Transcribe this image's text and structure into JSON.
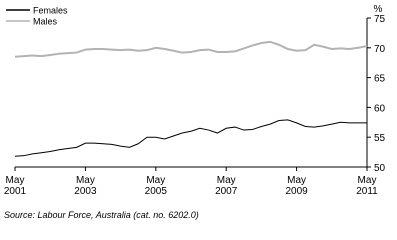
{
  "chart_data": {
    "type": "line",
    "y_label": "%",
    "source": "Source: Labour Force, Australia (cat. no. 6202.0)",
    "legend_position": "upper left",
    "x": [
      "2001-05",
      "2001-08",
      "2001-11",
      "2002-02",
      "2002-05",
      "2002-08",
      "2002-11",
      "2003-02",
      "2003-05",
      "2003-08",
      "2003-11",
      "2004-02",
      "2004-05",
      "2004-08",
      "2004-11",
      "2005-02",
      "2005-05",
      "2005-08",
      "2005-11",
      "2006-02",
      "2006-05",
      "2006-08",
      "2006-11",
      "2007-02",
      "2007-05",
      "2007-08",
      "2007-11",
      "2008-02",
      "2008-05",
      "2008-08",
      "2008-11",
      "2009-02",
      "2009-05",
      "2009-08",
      "2009-11",
      "2010-02",
      "2010-05",
      "2010-08",
      "2010-11",
      "2011-02",
      "2011-05"
    ],
    "series": [
      {
        "name": "Females",
        "color": "#000000",
        "values": [
          51.8,
          51.9,
          52.2,
          52.4,
          52.6,
          52.9,
          53.1,
          53.3,
          54.0,
          54.0,
          53.9,
          53.8,
          53.5,
          53.3,
          53.9,
          55.0,
          55.0,
          54.7,
          55.2,
          55.7,
          56.0,
          56.5,
          56.2,
          55.7,
          56.5,
          56.7,
          56.2,
          56.3,
          56.8,
          57.2,
          57.8,
          57.9,
          57.4,
          56.8,
          56.7,
          56.9,
          57.2,
          57.5,
          57.4,
          57.4,
          57.4
        ]
      },
      {
        "name": "Males",
        "color": "#b3b3b3",
        "values": [
          68.5,
          68.6,
          68.7,
          68.6,
          68.8,
          69.0,
          69.1,
          69.2,
          69.7,
          69.8,
          69.8,
          69.7,
          69.6,
          69.7,
          69.5,
          69.6,
          70.0,
          69.8,
          69.5,
          69.2,
          69.3,
          69.6,
          69.7,
          69.3,
          69.3,
          69.4,
          69.9,
          70.4,
          70.8,
          71.0,
          70.5,
          69.8,
          69.5,
          69.6,
          70.5,
          70.2,
          69.8,
          69.9,
          69.8,
          70.0,
          70.3
        ]
      }
    ],
    "xlim": [
      "2001-05",
      "2011-05"
    ],
    "xticks": [
      {
        "value": "2001-05",
        "label": "May 2001"
      },
      {
        "value": "2003-05",
        "label": "May 2003"
      },
      {
        "value": "2005-05",
        "label": "May 2005"
      },
      {
        "value": "2007-05",
        "label": "May 2007"
      },
      {
        "value": "2009-05",
        "label": "May 2009"
      },
      {
        "value": "2011-05",
        "label": "May 2011"
      }
    ],
    "ylim": [
      50,
      75
    ],
    "yticks": [
      50,
      55,
      60,
      65,
      70,
      75
    ]
  }
}
